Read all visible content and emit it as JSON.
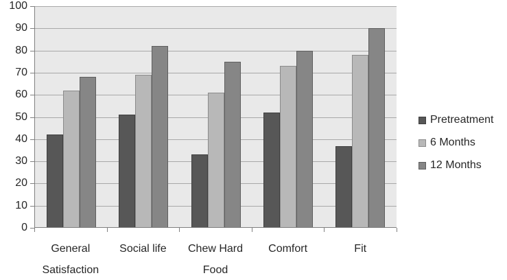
{
  "figure": {
    "background": "#ffffff",
    "text_color": "#262626"
  },
  "chart_data": {
    "type": "bar",
    "title": "",
    "xlabel": "",
    "ylabel": "",
    "categories": [
      "General Satisfaction",
      "Social life",
      "Chew Hard Food",
      "Comfort",
      "Fit"
    ],
    "category_label_lines": [
      [
        "General",
        "Satisfaction"
      ],
      [
        "Social life"
      ],
      [
        "Chew Hard",
        "Food"
      ],
      [
        "Comfort"
      ],
      [
        "Fit"
      ]
    ],
    "series": [
      {
        "name": "Pretreatment",
        "values": [
          42,
          51,
          33,
          52,
          37
        ],
        "color": "#575757",
        "border_color": "#3e3e3e"
      },
      {
        "name": "6 Months",
        "values": [
          62,
          69,
          61,
          73,
          78
        ],
        "color": "#b8b8b8",
        "border_color": "#8a8a8a"
      },
      {
        "name": "12 Months",
        "values": [
          68,
          82,
          75,
          80,
          90
        ],
        "color": "#868686",
        "border_color": "#5e5e5e"
      }
    ],
    "ylim": [
      0,
      100
    ],
    "yticks": [
      0,
      10,
      20,
      30,
      40,
      50,
      60,
      70,
      80,
      90,
      100
    ],
    "grid": true,
    "legend_position": "right",
    "plot_background": "#e9e9e9",
    "gridline_color": "#a8a8a8",
    "axis_color": "#7f7f7f"
  }
}
